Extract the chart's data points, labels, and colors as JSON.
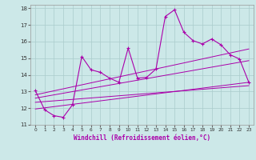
{
  "xlabel": "Windchill (Refroidissement éolien,°C)",
  "bg_color": "#cce8e8",
  "line_color": "#aa00aa",
  "grid_color": "#aacccc",
  "xlim": [
    -0.5,
    23.5
  ],
  "ylim": [
    11,
    18.2
  ],
  "yticks": [
    11,
    12,
    13,
    14,
    15,
    16,
    17,
    18
  ],
  "xticks": [
    0,
    1,
    2,
    3,
    4,
    5,
    6,
    7,
    8,
    9,
    10,
    11,
    12,
    13,
    14,
    15,
    16,
    17,
    18,
    19,
    20,
    21,
    22,
    23
  ],
  "main_line_x": [
    0,
    1,
    2,
    3,
    4,
    5,
    6,
    7,
    8,
    9,
    10,
    11,
    12,
    13,
    14,
    15,
    16,
    17,
    18,
    19,
    20,
    21,
    22,
    23
  ],
  "main_line_y": [
    13.05,
    11.9,
    11.55,
    11.45,
    12.2,
    15.1,
    14.3,
    14.15,
    13.8,
    13.55,
    15.6,
    13.8,
    13.85,
    14.35,
    17.5,
    17.9,
    16.55,
    16.05,
    15.85,
    16.15,
    15.8,
    15.2,
    14.95,
    13.55
  ],
  "reg_lines": [
    {
      "x0": 0,
      "y0": 12.8,
      "x1": 23,
      "y1": 15.55
    },
    {
      "x0": 0,
      "y0": 12.6,
      "x1": 23,
      "y1": 14.85
    },
    {
      "x0": 0,
      "y0": 12.35,
      "x1": 23,
      "y1": 13.35
    },
    {
      "x0": 0,
      "y0": 11.95,
      "x1": 23,
      "y1": 13.55
    }
  ]
}
